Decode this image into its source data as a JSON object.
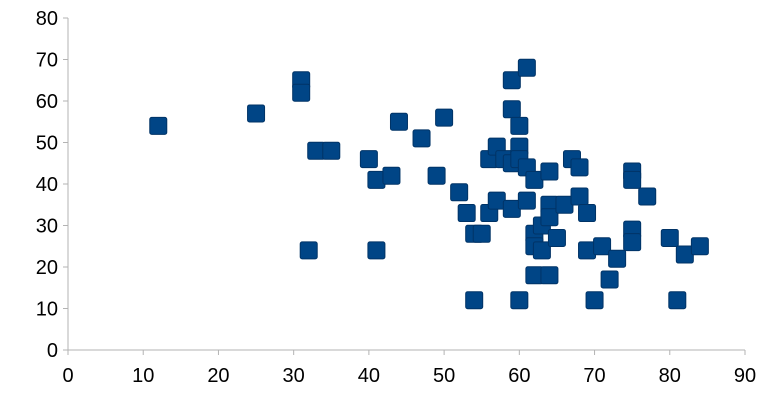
{
  "chart_data": {
    "type": "scatter",
    "title": "",
    "xlabel": "",
    "ylabel": "",
    "xlim": [
      0,
      90
    ],
    "ylim": [
      0,
      80
    ],
    "x_ticks": [
      0,
      10,
      20,
      30,
      40,
      50,
      60,
      70,
      80,
      90
    ],
    "y_ticks": [
      0,
      10,
      20,
      30,
      40,
      50,
      60,
      70,
      80
    ],
    "x_tick_labels": [
      "0",
      "10",
      "20",
      "30",
      "40",
      "50",
      "60",
      "70",
      "80",
      "90"
    ],
    "y_tick_labels": [
      "0",
      "10",
      "20",
      "30",
      "40",
      "50",
      "60",
      "70",
      "80"
    ],
    "grid": false,
    "legend": "none",
    "marker": "square",
    "colors": {
      "marker_fill": "#004586",
      "marker_edge": "#003366",
      "axis": "#b3b3b3"
    },
    "series": [
      {
        "points": [
          [
            12,
            54
          ],
          [
            25,
            57
          ],
          [
            31,
            65
          ],
          [
            31,
            62
          ],
          [
            32,
            24
          ],
          [
            33,
            48
          ],
          [
            35,
            48
          ],
          [
            40,
            46
          ],
          [
            41,
            41
          ],
          [
            41,
            24
          ],
          [
            43,
            42
          ],
          [
            44,
            55
          ],
          [
            47,
            51
          ],
          [
            49,
            42
          ],
          [
            50,
            56
          ],
          [
            52,
            38
          ],
          [
            53,
            33
          ],
          [
            54,
            28
          ],
          [
            54,
            12
          ],
          [
            55,
            28
          ],
          [
            56,
            33
          ],
          [
            56,
            46
          ],
          [
            57,
            49
          ],
          [
            57,
            36
          ],
          [
            58,
            46
          ],
          [
            59,
            65
          ],
          [
            59,
            58
          ],
          [
            59,
            45
          ],
          [
            59,
            34
          ],
          [
            60,
            54
          ],
          [
            60,
            49
          ],
          [
            60,
            46
          ],
          [
            60,
            12
          ],
          [
            61,
            68
          ],
          [
            61,
            44
          ],
          [
            61,
            36
          ],
          [
            62,
            41
          ],
          [
            62,
            28
          ],
          [
            62,
            25
          ],
          [
            62,
            18
          ],
          [
            63,
            30
          ],
          [
            63,
            24
          ],
          [
            64,
            43
          ],
          [
            64,
            35
          ],
          [
            64,
            32
          ],
          [
            64,
            18
          ],
          [
            65,
            27
          ],
          [
            66,
            35
          ],
          [
            67,
            46
          ],
          [
            68,
            44
          ],
          [
            68,
            37
          ],
          [
            69,
            33
          ],
          [
            69,
            24
          ],
          [
            70,
            12
          ],
          [
            71,
            25
          ],
          [
            72,
            17
          ],
          [
            73,
            22
          ],
          [
            75,
            43
          ],
          [
            75,
            41
          ],
          [
            75,
            29
          ],
          [
            75,
            26
          ],
          [
            77,
            37
          ],
          [
            80,
            27
          ],
          [
            81,
            12
          ],
          [
            82,
            23
          ],
          [
            84,
            25
          ]
        ]
      }
    ]
  }
}
